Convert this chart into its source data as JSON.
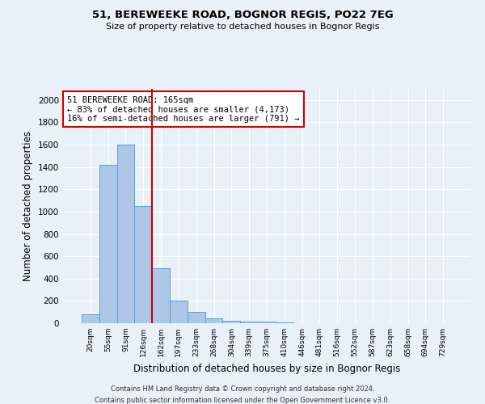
{
  "title1": "51, BEREWEEKE ROAD, BOGNOR REGIS, PO22 7EG",
  "title2": "Size of property relative to detached houses in Bognor Regis",
  "xlabel": "Distribution of detached houses by size in Bognor Regis",
  "ylabel": "Number of detached properties",
  "categories": [
    "20sqm",
    "55sqm",
    "91sqm",
    "126sqm",
    "162sqm",
    "197sqm",
    "233sqm",
    "268sqm",
    "304sqm",
    "339sqm",
    "375sqm",
    "410sqm",
    "446sqm",
    "481sqm",
    "516sqm",
    "552sqm",
    "587sqm",
    "623sqm",
    "658sqm",
    "694sqm",
    "729sqm"
  ],
  "values": [
    80,
    1420,
    1600,
    1050,
    490,
    205,
    105,
    45,
    25,
    15,
    15,
    10,
    0,
    0,
    0,
    0,
    0,
    0,
    0,
    0,
    0
  ],
  "bar_color": "#aec6e8",
  "bar_edge_color": "#5a9fd4",
  "vline_color": "#cc0000",
  "annotation_text": "51 BEREWEEKE ROAD: 165sqm\n← 83% of detached houses are smaller (4,173)\n16% of semi-detached houses are larger (791) →",
  "annotation_box_color": "white",
  "annotation_box_edge_color": "#cc0000",
  "ylim": [
    0,
    2100
  ],
  "yticks": [
    0,
    200,
    400,
    600,
    800,
    1000,
    1200,
    1400,
    1600,
    1800,
    2000
  ],
  "footnote1": "Contains HM Land Registry data © Crown copyright and database right 2024.",
  "footnote2": "Contains public sector information licensed under the Open Government Licence v3.0.",
  "background_color": "#e8f0f8",
  "plot_bg_color": "#e8f0f8",
  "vline_index": 4
}
